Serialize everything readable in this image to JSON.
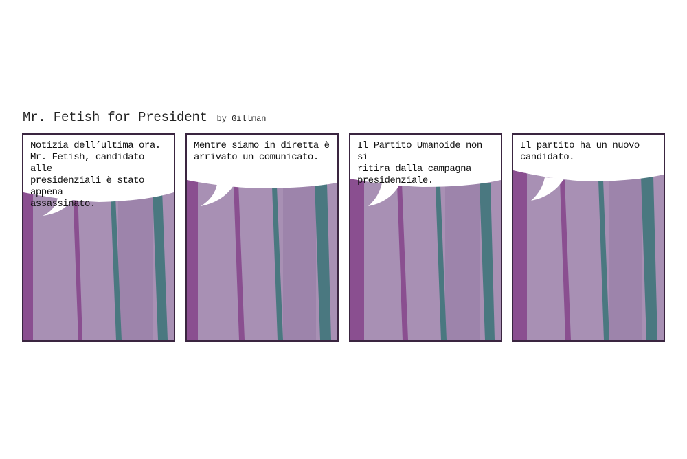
{
  "strip": {
    "title": "Mr. Fetish for President",
    "byline": "by Gillman"
  },
  "panels": [
    {
      "text": "Notizia dell’ultima ora.\nMr. Fetish, candidato alle\npresidenziali è stato appena\nassassinato."
    },
    {
      "text": "Mentre siamo in diretta è\narrivato un comunicato."
    },
    {
      "text": "Il Partito Umanoide non si\nritira dalla campagna\npresidenziale."
    },
    {
      "text": "Il partito ha un nuovo\ncandidato."
    }
  ],
  "colors": {
    "background": "#a890b4",
    "stripe_purple": "#8a4f90",
    "stripe_teal": "#4a7880",
    "balloon": "#ffffff",
    "border": "#3a2540"
  }
}
